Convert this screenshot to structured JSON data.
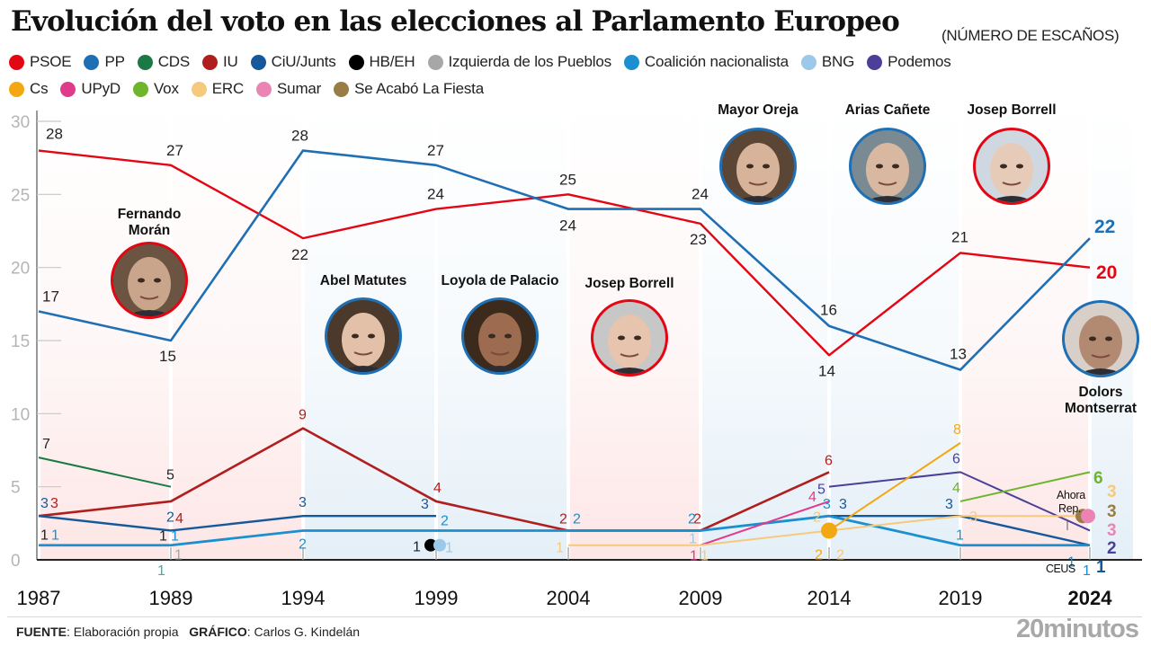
{
  "header": {
    "title": "Evolución del voto en las elecciones al Parlamento Europeo",
    "subtitle": "(NÚMERO DE ESCAÑOS)"
  },
  "legend": {
    "row1": [
      {
        "label": "PSOE",
        "color": "#e30613"
      },
      {
        "label": "PP",
        "color": "#1f6fb5"
      },
      {
        "label": "CDS",
        "color": "#1a7a45"
      },
      {
        "label": "IU",
        "color": "#b01e1e"
      },
      {
        "label": "CiU/Junts",
        "color": "#16599a"
      },
      {
        "label": "HB/EH",
        "color": "#000000"
      },
      {
        "label": "Izquierda de los Pueblos",
        "color": "#a7a7a7"
      },
      {
        "label": "Coalición nacionalista",
        "color": "#1b8fcf"
      },
      {
        "label": "BNG",
        "color": "#9cc8ea"
      },
      {
        "label": "Podemos",
        "color": "#4b3f99"
      }
    ],
    "row2": [
      {
        "label": "Cs",
        "color": "#f3a712"
      },
      {
        "label": "UPyD",
        "color": "#df3a8c"
      },
      {
        "label": "Vox",
        "color": "#6cb52d"
      },
      {
        "label": "ERC",
        "color": "#f7c97c"
      },
      {
        "label": "Sumar",
        "color": "#eb84b4"
      },
      {
        "label": "Se Acabó La Fiesta",
        "color": "#9a7c45"
      }
    ]
  },
  "chart_data": {
    "type": "line",
    "title": "Evolución del voto en las elecciones al Parlamento Europeo",
    "subtitle": "(NÚMERO DE ESCAÑOS)",
    "xlabel": "",
    "ylabel": "",
    "x": [
      "1987",
      "1989",
      "1994",
      "1999",
      "2004",
      "2009",
      "2014",
      "2019",
      "2024"
    ],
    "highlight_x": "2024",
    "ylim": [
      0,
      30
    ],
    "yticks": [
      0,
      5,
      10,
      15,
      20,
      25,
      30
    ],
    "grid": false,
    "legend_position": "top",
    "series": [
      {
        "name": "PSOE",
        "color": "#e30613",
        "values": [
          28,
          27,
          22,
          24,
          25,
          23,
          14,
          21,
          20
        ]
      },
      {
        "name": "PP",
        "color": "#1f6fb5",
        "values": [
          17,
          15,
          28,
          27,
          24,
          24,
          16,
          13,
          22
        ]
      },
      {
        "name": "CDS",
        "color": "#1a7a45",
        "values": [
          7,
          5,
          null,
          null,
          null,
          null,
          null,
          null,
          null
        ]
      },
      {
        "name": "IU",
        "color": "#b01e1e",
        "values": [
          3,
          4,
          9,
          4,
          2,
          2,
          6,
          null,
          null
        ]
      },
      {
        "name": "CiU/Junts",
        "color": "#16599a",
        "values": [
          3,
          2,
          3,
          3,
          null,
          null,
          3,
          3,
          1
        ]
      },
      {
        "name": "HB/EH",
        "color": "#000000",
        "values": [
          1,
          1,
          null,
          1,
          null,
          null,
          null,
          null,
          null
        ]
      },
      {
        "name": "Izquierda de los Pueblos",
        "color": "#a7a7a7",
        "values": [
          null,
          1,
          null,
          null,
          null,
          null,
          null,
          null,
          null
        ]
      },
      {
        "name": "Coalición nacionalista",
        "color": "#1b8fcf",
        "values": [
          1,
          1,
          2,
          2,
          2,
          2,
          3,
          1,
          1
        ]
      },
      {
        "name": "BNG",
        "color": "#9cc8ea",
        "values": [
          null,
          null,
          null,
          1,
          null,
          1,
          null,
          null,
          null
        ]
      },
      {
        "name": "Podemos",
        "color": "#4b3f99",
        "values": [
          null,
          null,
          null,
          null,
          null,
          null,
          5,
          6,
          2
        ]
      },
      {
        "name": "Cs",
        "color": "#f3a712",
        "values": [
          null,
          null,
          null,
          null,
          null,
          null,
          2,
          8,
          null
        ]
      },
      {
        "name": "UPyD",
        "color": "#df3a8c",
        "values": [
          null,
          null,
          null,
          null,
          null,
          1,
          4,
          null,
          null
        ]
      },
      {
        "name": "Vox",
        "color": "#6cb52d",
        "values": [
          null,
          null,
          null,
          null,
          null,
          null,
          null,
          4,
          6
        ]
      },
      {
        "name": "ERC",
        "color": "#f7c97c",
        "values": [
          null,
          null,
          null,
          null,
          1,
          1,
          2,
          3,
          3
        ]
      },
      {
        "name": "Sumar",
        "color": "#eb84b4",
        "values": [
          null,
          null,
          null,
          null,
          null,
          null,
          null,
          null,
          3
        ]
      },
      {
        "name": "Se Acabó La Fiesta",
        "color": "#9a7c45",
        "values": [
          null,
          null,
          null,
          null,
          null,
          null,
          null,
          null,
          3
        ]
      }
    ],
    "annotations": [
      {
        "text": "Ahora Rep.",
        "x": "2024",
        "series": "ERC"
      },
      {
        "text": "CEUS",
        "x": "2024",
        "series": "Coalición nacionalista"
      }
    ],
    "candidates": [
      {
        "name": "Fernando Morán",
        "x": "1989",
        "party": "PSOE"
      },
      {
        "name": "Abel Matutes",
        "x": "1994",
        "party": "PP"
      },
      {
        "name": "Loyola de Palacio",
        "x": "1999",
        "party": "PP"
      },
      {
        "name": "Josep Borrell",
        "x": "2004",
        "party": "PSOE"
      },
      {
        "name": "Mayor Oreja",
        "x": "2009",
        "party": "PP"
      },
      {
        "name": "Arias Cañete",
        "x": "2014",
        "party": "PP"
      },
      {
        "name": "Josep Borrell",
        "x": "2019",
        "party": "PSOE"
      },
      {
        "name": "Dolors Montserrat",
        "x": "2024",
        "party": "PP"
      }
    ],
    "winner_bands": [
      "PSOE",
      "PSOE",
      "PP",
      "PP",
      "PSOE",
      "PP",
      "PP",
      "PSOE",
      "PP"
    ]
  },
  "footer": {
    "source_label": "FUENTE",
    "source_value": ": Elaboración propia",
    "graphic_label": "GRÁFICO",
    "graphic_value": ": Carlos G. Kindelán",
    "brand": "20minutos"
  }
}
